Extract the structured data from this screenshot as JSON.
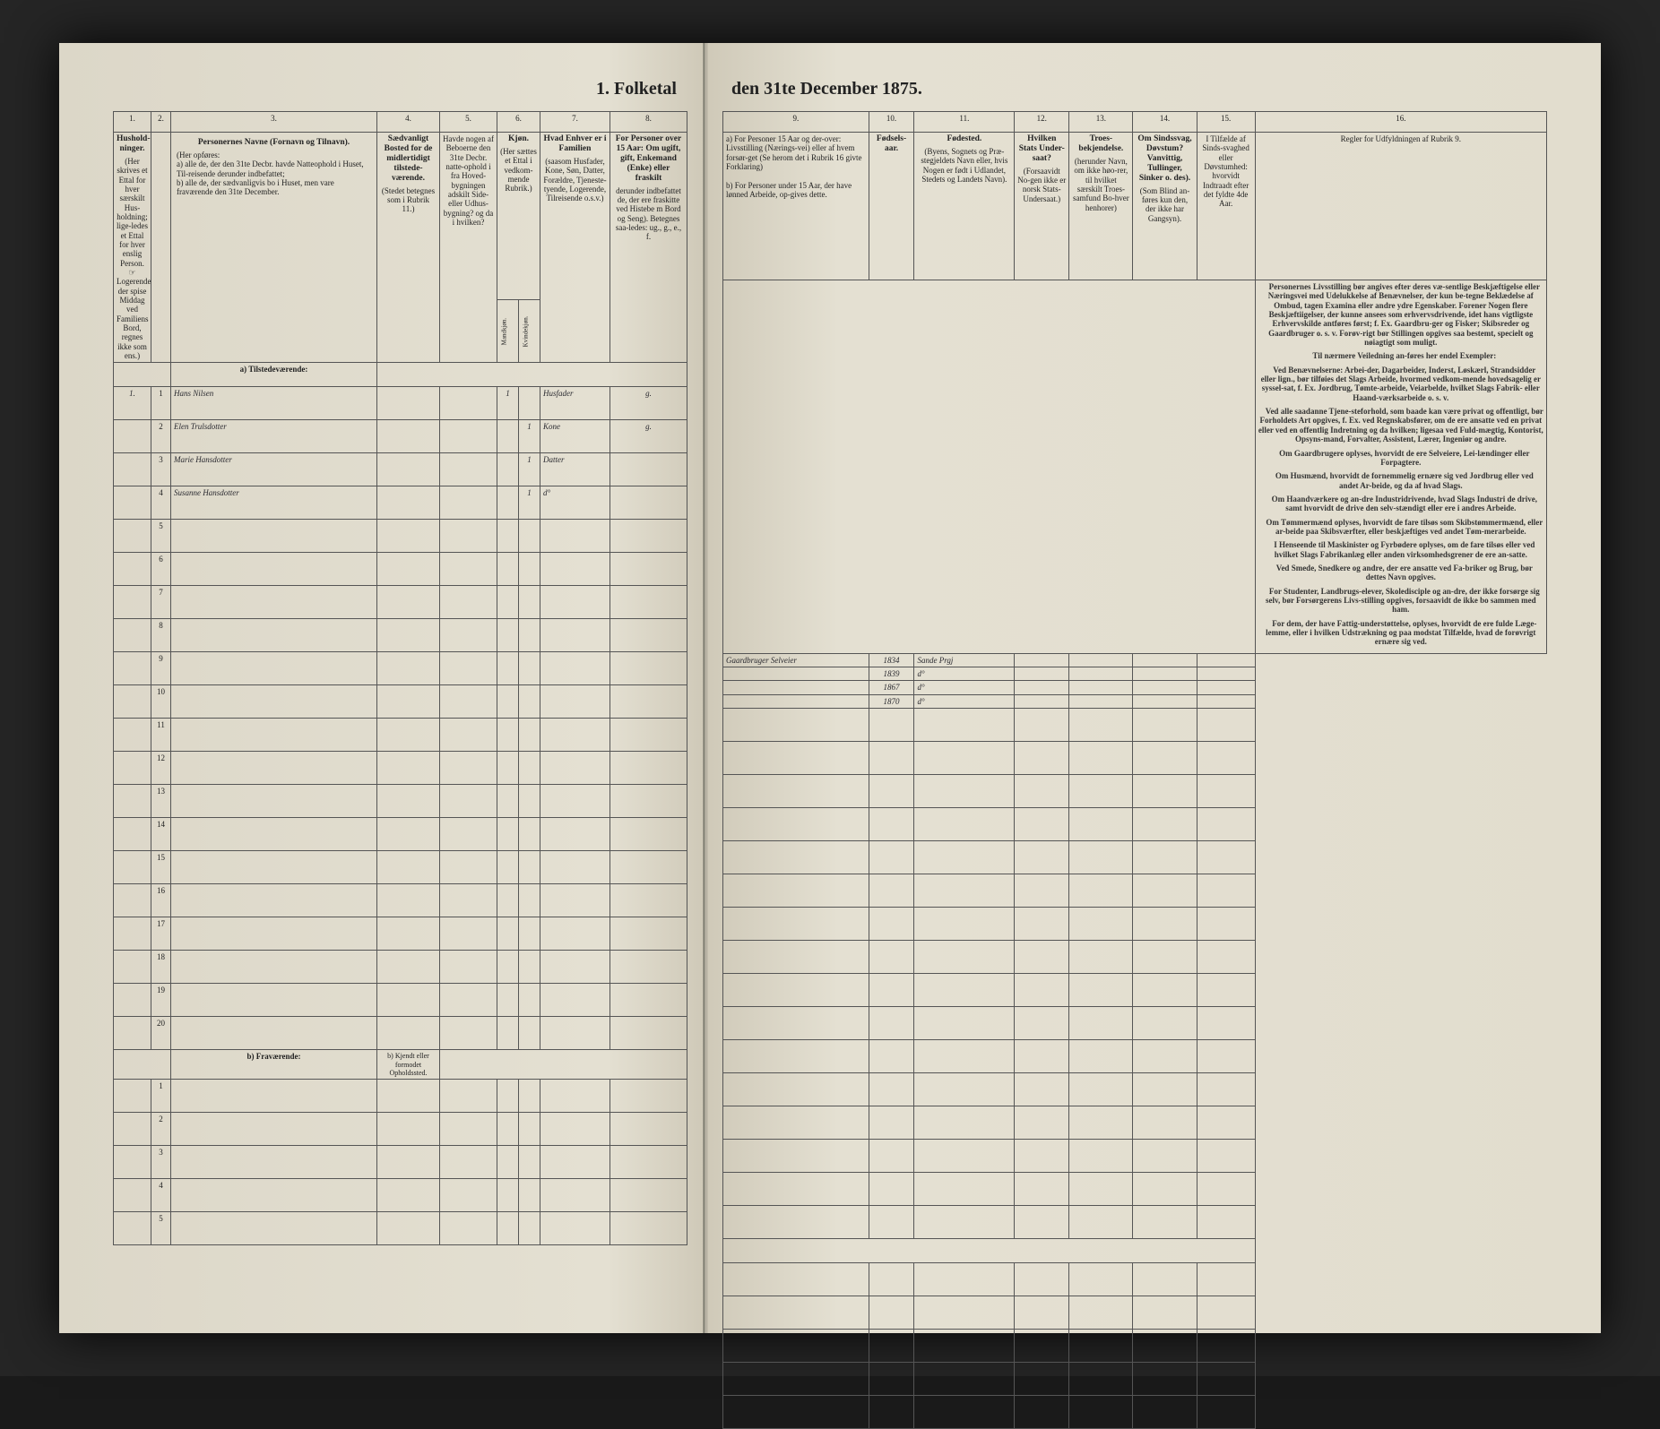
{
  "title_left": "1. Folketal",
  "title_right": "den 31te December 1875.",
  "left_cols": {
    "c1": {
      "num": "1.",
      "head": "Hushold-ninger.",
      "sub": "(Her skrives et Ettal for hver særskilt Hus-holdning; lige-ledes et Ettal for hver enslig Person. ☞ Logerende, der spise Middag ved Familiens Bord, regnes ikke som ens.)"
    },
    "c2": {
      "num": "2."
    },
    "c3": {
      "num": "3.",
      "head": "Personernes Navne (Fornavn og Tilnavn).",
      "sub_intro": "(Her opføres:",
      "sub_a": "a) alle de, der den 31te Decbr. havde Natteophold i Huset, Til-reisende derunder indbefattet;",
      "sub_b": "b) alle de, der sædvanligvis bo i Huset, men vare fraværende den 31te December."
    },
    "c4": {
      "num": "4.",
      "head": "Sædvanligt Bosted for de midlertidigt tilstede-værende.",
      "sub": "(Stedet betegnes som i Rubrik 11.)"
    },
    "c5": {
      "num": "5.",
      "head": "Havde nogen af Beboerne den 31te Decbr. natte-ophold i fra Hoved-bygningen adskilt Side- eller Udhus-bygning? og da i hvilken?"
    },
    "c6": {
      "num": "6.",
      "head": "Kjøn.",
      "sub": "(Her sættes et Ettal i vedkom-mende Rubrik.)",
      "sub_m": "Mandkjøn.",
      "sub_k": "Kvindekjøn."
    },
    "c7": {
      "num": "7.",
      "head": "Hvad Enhver er i Familien",
      "sub": "(saasom Husfader, Kone, Søn, Datter, Forældre, Tjeneste-tyende, Logerende, Tilreisende o.s.v.)"
    },
    "c8": {
      "num": "8.",
      "head": "For Personer over 15 Aar: Om ugift, gift, Enkemand (Enke) eller fraskilt",
      "sub": "derunder indbefattet de, der ere fraskitte ved Histebe m Bord og Seng). Betegnes saa-ledes: ug., g., e., f."
    }
  },
  "right_cols": {
    "c9": {
      "num": "9.",
      "head_a": "a) For Personer 15 Aar og der-over: Livsstilling (Nærings-vei) eller af hvem forsør-get (Se herom det i Rubrik 16 givte Forklaring)",
      "head_b": "b) For Personer under 15 Aar, der have lønned Arbeide, op-gives dette."
    },
    "c10": {
      "num": "10.",
      "head": "Fødsels-aar."
    },
    "c11": {
      "num": "11.",
      "head": "Fødested.",
      "sub": "(Byens, Sognets og Præ-stegjeldets Navn eller, hvis Nogen er født i Udlandet, Stedets og Landets Navn)."
    },
    "c12": {
      "num": "12.",
      "head": "Hvilken Stats Under-saat?",
      "sub": "(Forsaavidt No-gen ikke er norsk Stats-Undersaat.)"
    },
    "c13": {
      "num": "13.",
      "head": "Troes-bekjendelse.",
      "sub": "(herunder Navn, om ikke høo-rer, til hvilket særskilt Troes-samfund Bo-hver henhorer)"
    },
    "c14": {
      "num": "14.",
      "head": "Om Sindssvag, Døvstum? Vanvittig, Tullinger, Sinker o. des).",
      "sub": "(Som Blind an-føres kun den, der ikke har Gangsyn)."
    },
    "c15": {
      "num": "15.",
      "head": "I Tilfælde af Sinds-svaghed eller Døvstumhed: hvorvidt Indtraadt efter det fyldte 4de Aar."
    },
    "c16": {
      "num": "16.",
      "head": "Regler for Udfyldningen af Rubrik 9."
    }
  },
  "section_a": "a) Tilstedeværende:",
  "section_b": "b) Fraværende:",
  "section_b_right": "b) Kjendt eller formodet Opholdssted.",
  "rows": [
    {
      "hh": "1.",
      "n": "1",
      "name": "Hans Nilsen",
      "k": "1",
      "kv": "",
      "rel": "Husfader",
      "civ": "g.",
      "occ": "Gaardbruger Selveier",
      "yr": "1834",
      "pl": "Sande Prgj"
    },
    {
      "hh": "",
      "n": "2",
      "name": "Elen Trulsdotter",
      "k": "",
      "kv": "1",
      "rel": "Kone",
      "civ": "g.",
      "occ": "",
      "yr": "1839",
      "pl": "d°"
    },
    {
      "hh": "",
      "n": "3",
      "name": "Marie Hansdotter",
      "k": "",
      "kv": "1",
      "rel": "Datter",
      "civ": "",
      "occ": "",
      "yr": "1867",
      "pl": "d°"
    },
    {
      "hh": "",
      "n": "4",
      "name": "Susanne Hansdotter",
      "k": "",
      "kv": "1",
      "rel": "d°",
      "civ": "",
      "occ": "",
      "yr": "1870",
      "pl": "d°"
    }
  ],
  "empty_rows_a": [
    "5",
    "6",
    "7",
    "8",
    "9",
    "10",
    "11",
    "12",
    "13",
    "14",
    "15",
    "16",
    "17",
    "18",
    "19",
    "20"
  ],
  "empty_rows_b": [
    "1",
    "2",
    "3",
    "4",
    "5"
  ],
  "rules_text": [
    "Personernes Livsstilling bør angives efter deres væ-sentlige Beskjæftigelse eller Næringsvei med Udelukkelse af Benævnelser, der kun be-tegne Beklædelse af Ombud, tagen Examina eller andre ydre Egenskaber. Forener Nogen flere Beskjæftiigelser, der kunne ansees som erhvervsdrivende, idet hans vigtligste Erhvervskilde antføres først; f. Ex. Gaardbru-ger og Fisker; Skibsreder og Gaardbruger o. s. v. Forøv-rigt bør Stillingen opgives saa bestemt, specielt og nøiagtigt som muligt.",
    "Til nærmere Veiledning an-føres her endel Exempler:",
    "Ved Benævnelserne: Arbei-der, Dagarbeider, Inderst, Løskærl, Strandsidder eller lign., bør tilføies det Slags Arbeide, hvormed vedkom-mende hovedsagelig er syssel-sat, f. Ex. Jordbrug, Tømte-arbeide, Veiarbelde, hvilket Slags Fabrik- eller Haand-værksarbeide o. s. v.",
    "Ved alle saadanne Tjene-steforhold, som baade kan være privat og offentligt, bør Forholdets Art opgives, f. Ex. ved Regnskabsfører, om de ere ansatte ved en privat eller ved en offentlig Indretning og da hvilken; ligesaa ved Fuld-mægtig, Kontorist, Opsyns-mand, Forvalter, Assistent, Lærer, Ingeniør og andre.",
    "Om Gaardbrugere oplyses, hvorvidt de ere Selveiere, Lei-lændinger eller Forpagtere.",
    "Om Husmænd, hvorvidt de fornemmelig ernære sig ved Jordbrug eller ved andet Ar-beide, og da af hvad Slags.",
    "Om Haandværkere og an-dre Industridrivende, hvad Slags Industri de drive, samt hvorvidt de drive den selv-stændigt eller ere i andres Arbeide.",
    "Om Tømmermænd oplyses, hvorvidt de fare tilsøs som Skibstømmermænd, eller ar-beide paa Skibsværfter, eller beskjæftiges ved andet Tøm-merarbeide.",
    "I Henseende til Maskinister og Fyrbødere oplyses, om de fare tilsøs eller ved hvilket Slags Fabrikanlæg eller anden virksomhedsgrener de ere an-satte.",
    "Ved Smede, Snedkere og andre, der ere ansatte ved Fa-briker og Brug, bør dettes Navn opgives.",
    "For Studenter, Landbrugs-elever, Skoledisciple og an-dre, der ikke forsørge sig selv, bør Forsørgerens Livs-stilling opgives, forsaavidt de ikke bo sammen med ham.",
    "For dem, der have Fattig-understøttelse, oplyses, hvorvidt de ere fulde Læge-lemme, eller i hvilken Udstrækning og paa modstat Tilfælde, hvad de forøvrigt ernære sig ved."
  ]
}
